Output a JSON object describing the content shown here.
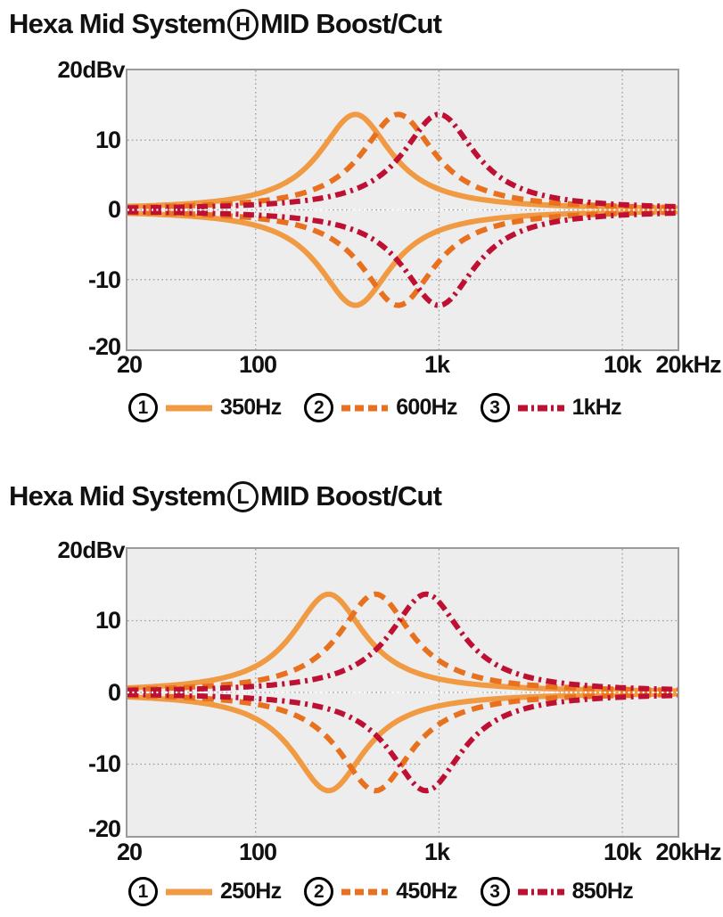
{
  "chart_data": [
    {
      "type": "line",
      "title": {
        "prefix": "Hexa Mid System",
        "circle": "H",
        "suffix": "MID Boost/Cut"
      },
      "y_axis_top_label": "20dBv",
      "y_ticks": [
        "10",
        "0",
        "-10",
        "-20"
      ],
      "x_ticks": [
        "20",
        "100",
        "1k",
        "10k",
        "20kHz"
      ],
      "xlim_hz": [
        20,
        20000
      ],
      "ylim_db": [
        -20,
        20
      ],
      "x_scale": "log",
      "x_gridlines_hz": [
        100,
        1000,
        10000
      ],
      "y_gridlines_db": [
        10,
        0,
        -10
      ],
      "grid_style": "dotted",
      "legend_position": "bottom",
      "series": [
        {
          "name": "1",
          "label": "350Hz",
          "center_hz": 350,
          "peak_db": 13.7,
          "cut_db": -13.7,
          "hwhm_decades": 0.24,
          "style": "solid",
          "color": "#F09A44"
        },
        {
          "name": "2",
          "label": "600Hz",
          "center_hz": 600,
          "peak_db": 13.7,
          "cut_db": -13.7,
          "hwhm_decades": 0.24,
          "style": "dashed",
          "color": "#E8711F"
        },
        {
          "name": "3",
          "label": "1kHz",
          "center_hz": 1000,
          "peak_db": 13.7,
          "cut_db": -13.7,
          "hwhm_decades": 0.24,
          "style": "dashdot",
          "color": "#BE1033"
        }
      ]
    },
    {
      "type": "line",
      "title": {
        "prefix": "Hexa Mid System",
        "circle": "L",
        "suffix": "MID Boost/Cut"
      },
      "y_axis_top_label": "20dBv",
      "y_ticks": [
        "10",
        "0",
        "-10",
        "-20"
      ],
      "x_ticks": [
        "20",
        "100",
        "1k",
        "10k",
        "20kHz"
      ],
      "xlim_hz": [
        20,
        20000
      ],
      "ylim_db": [
        -20,
        20
      ],
      "x_scale": "log",
      "x_gridlines_hz": [
        100,
        1000,
        10000
      ],
      "y_gridlines_db": [
        10,
        0,
        -10
      ],
      "grid_style": "dotted",
      "legend_position": "bottom",
      "series": [
        {
          "name": "1",
          "label": "250Hz",
          "center_hz": 250,
          "peak_db": 13.7,
          "cut_db": -13.7,
          "hwhm_decades": 0.24,
          "style": "solid",
          "color": "#F09A44"
        },
        {
          "name": "2",
          "label": "450Hz",
          "center_hz": 450,
          "peak_db": 13.7,
          "cut_db": -13.7,
          "hwhm_decades": 0.24,
          "style": "dashed",
          "color": "#E8711F"
        },
        {
          "name": "3",
          "label": "850Hz",
          "center_hz": 850,
          "peak_db": 13.7,
          "cut_db": -13.7,
          "hwhm_decades": 0.24,
          "style": "dashdot",
          "color": "#BE1033"
        }
      ]
    }
  ],
  "colors": {
    "plot_background": "#EDEDED",
    "plot_border": "#9A9A9A",
    "gridline": "#9C9C9C",
    "zero_line_overlay": "#FFFFFF",
    "text": "#111111"
  }
}
